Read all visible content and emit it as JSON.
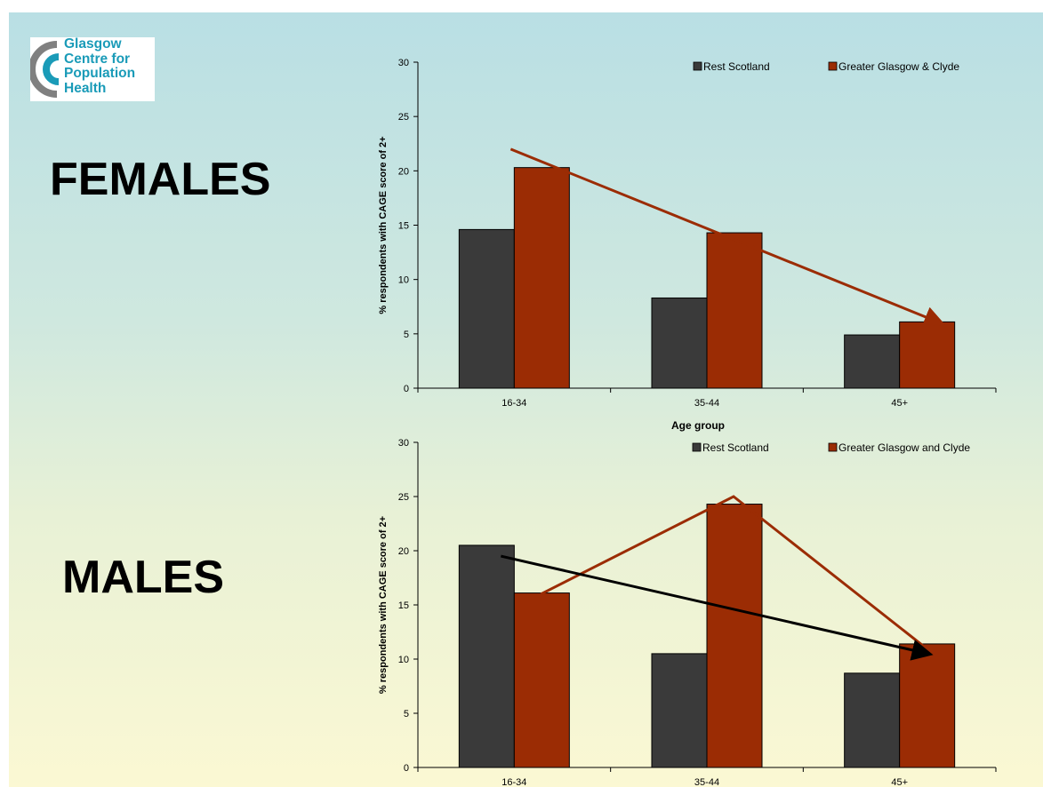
{
  "logo": {
    "lines": [
      "Glasgow",
      "Centre for",
      "Population",
      "Health"
    ],
    "colors": {
      "text": "#1a9bb8",
      "arc_outer": "#808080",
      "arc_inner": "#1a9bb8"
    }
  },
  "headings": {
    "females": "FEMALES",
    "males": "MALES"
  },
  "colors": {
    "rest_scotland": "#3a3a3a",
    "greater_glasgow": "#9b2c04",
    "arrow_dark": "#000000"
  },
  "chart_data": [
    {
      "type": "bar",
      "categories": [
        "16-34",
        "35-44",
        "45+"
      ],
      "series": [
        {
          "name": "Rest Scotland",
          "values": [
            14.6,
            8.3,
            4.9
          ]
        },
        {
          "name": "Greater Glasgow & Clyde",
          "values": [
            20.3,
            14.3,
            6.1
          ]
        }
      ],
      "xlabel": "Age group",
      "ylabel": "% respondents with CAGE score of 2+",
      "ylim": [
        0,
        30
      ],
      "yticks": [
        0,
        5,
        10,
        15,
        20,
        25,
        30
      ],
      "legend_position": "top-right",
      "annotations": [
        {
          "type": "arrow",
          "color": "#9b2c04",
          "from": [
            "16-34",
            22
          ],
          "to": [
            "45+",
            6
          ]
        }
      ]
    },
    {
      "type": "bar",
      "categories": [
        "16-34",
        "35-44",
        "45+"
      ],
      "series": [
        {
          "name": "Rest Scotland",
          "values": [
            20.5,
            10.5,
            8.7
          ]
        },
        {
          "name": "Greater Glasgow and Clyde",
          "values": [
            16.1,
            24.3,
            11.4
          ]
        }
      ],
      "xlabel": "",
      "ylabel": "% respondents with CAGE score of 2+",
      "ylim": [
        0,
        30
      ],
      "yticks": [
        0,
        5,
        10,
        15,
        20,
        25,
        30
      ],
      "legend_position": "top-right",
      "annotations": [
        {
          "type": "polyline",
          "color": "#9b2c04",
          "points": [
            [
              "16-34",
              16
            ],
            [
              "35-44",
              25
            ],
            [
              "45+",
              11
            ]
          ]
        },
        {
          "type": "arrow",
          "color": "#000000",
          "from": [
            "16-34",
            19.5
          ],
          "to": [
            "45+",
            10.5
          ]
        }
      ]
    }
  ]
}
